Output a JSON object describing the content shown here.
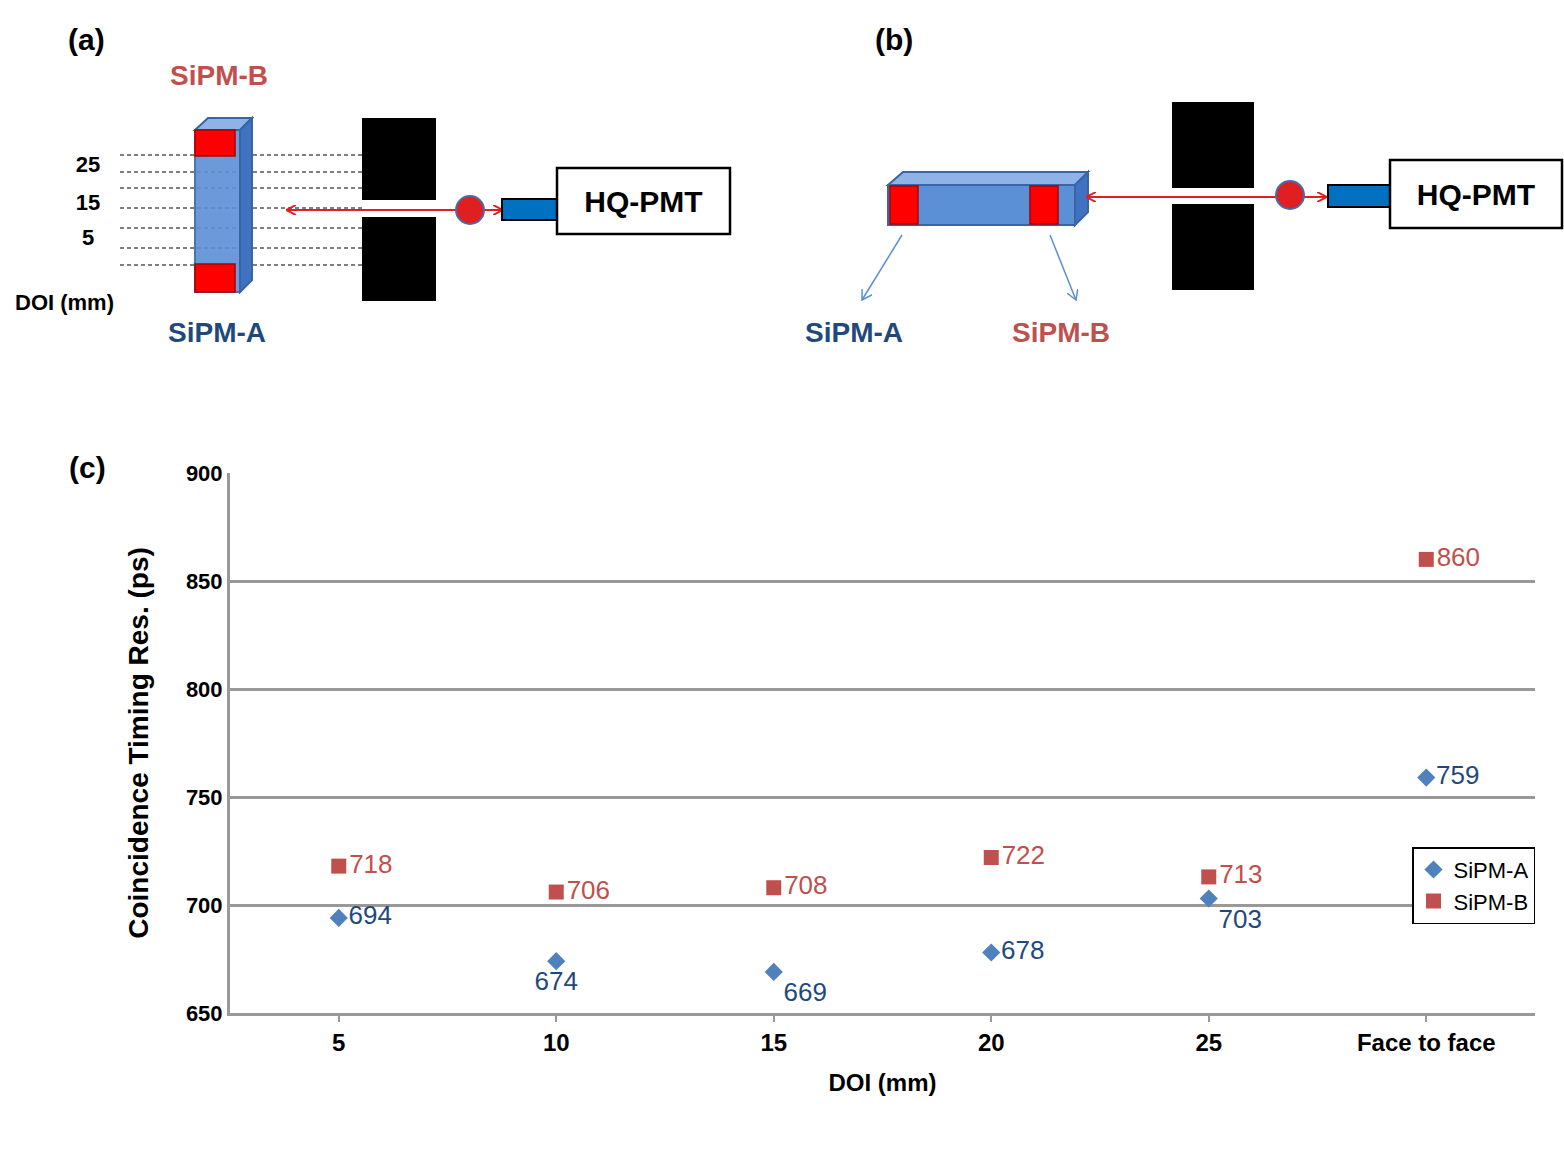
{
  "diagram_a": {
    "label": "(a)",
    "top_sipm": "SiPM-B",
    "bottom_sipm": "SiPM-A",
    "doi_ticks": [
      25,
      15,
      5
    ],
    "doi_axis": "DOI (mm)",
    "detector": "HQ-PMT"
  },
  "diagram_b": {
    "label": "(b)",
    "left_sipm": "SiPM-A",
    "right_sipm": "SiPM-B",
    "detector": "HQ-PMT"
  },
  "chart_data": {
    "type": "scatter",
    "annotations": [
      "(c)"
    ],
    "x_label": "DOI (mm)",
    "y_label": "Coincidence Timing Res. (ps)",
    "categories": [
      "5",
      "10",
      "15",
      "20",
      "25",
      "Face to face"
    ],
    "series": [
      {
        "name": "SiPM-A",
        "color": "#4f81bd",
        "marker": "diamond",
        "values": [
          694,
          674,
          669,
          678,
          703,
          759
        ]
      },
      {
        "name": "SiPM-B",
        "color": "#c0504d",
        "marker": "square",
        "values": [
          718,
          706,
          708,
          722,
          713,
          860
        ]
      }
    ],
    "ylim": [
      650,
      900
    ],
    "yticks": [
      650,
      700,
      750,
      800,
      850,
      900
    ],
    "grid": true,
    "legend": "right",
    "data_labels": true
  }
}
